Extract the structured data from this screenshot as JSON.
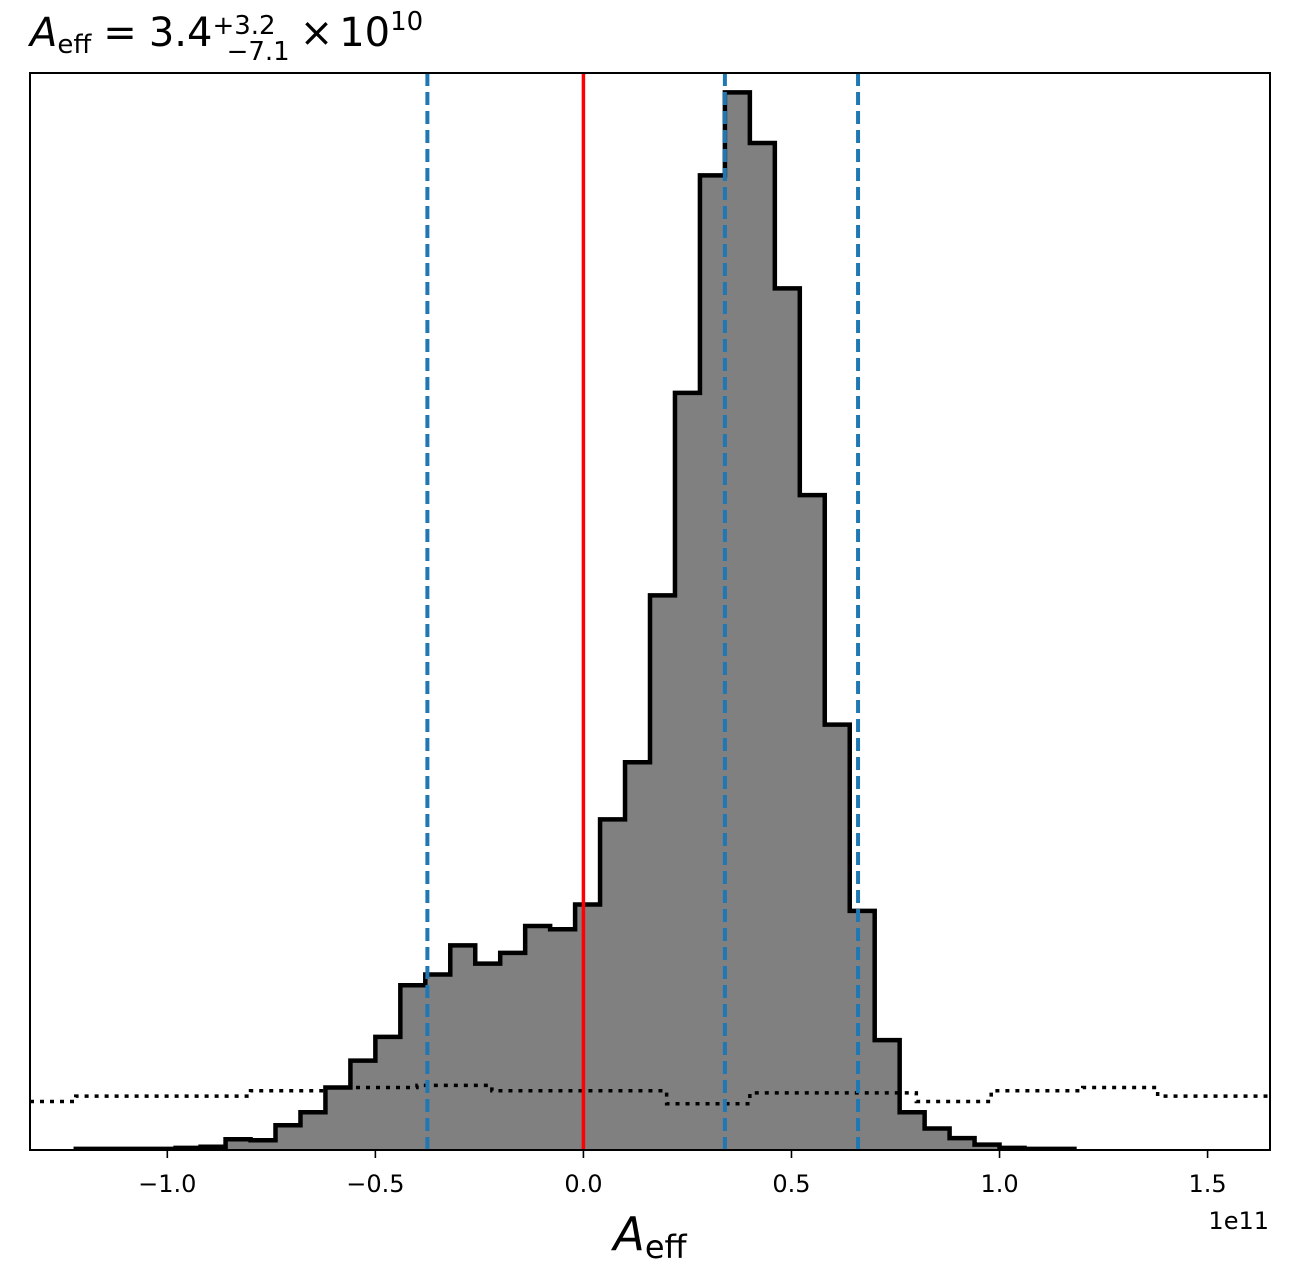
{
  "chart_data": {
    "type": "histogram",
    "title": {
      "symbol": "A",
      "subscript": "eff",
      "equals": "=",
      "value": "3.4",
      "plus": "+3.2",
      "minus": "−7.1",
      "times": "×",
      "base": "10",
      "exponent": "10"
    },
    "xlabel": {
      "symbol": "A",
      "subscript": "eff"
    },
    "offset_label": "1e11",
    "xlim": [
      -1.33,
      1.65
    ],
    "ylim": [
      0,
      1.0
    ],
    "x_ticks": [
      -1.0,
      -0.5,
      0.0,
      0.5,
      1.0,
      1.5
    ],
    "x_tick_labels": [
      "−1.0",
      "−0.5",
      "0.0",
      "0.5",
      "1.0",
      "1.5"
    ],
    "y_ticks_shown": false,
    "bin_edges": [
      -1.22,
      -1.16,
      -1.1,
      -1.04,
      -0.98,
      -0.92,
      -0.86,
      -0.8,
      -0.74,
      -0.68,
      -0.62,
      -0.56,
      -0.5,
      -0.44,
      -0.38,
      -0.32,
      -0.26,
      -0.2,
      -0.14,
      -0.08,
      -0.02,
      0.04,
      0.1,
      0.16,
      0.22,
      0.28,
      0.34,
      0.4,
      0.46,
      0.52,
      0.58,
      0.64,
      0.7,
      0.76,
      0.82,
      0.88,
      0.94,
      1.0,
      1.06,
      1.12,
      1.18
    ],
    "counts": [
      0.001,
      0.001,
      0.001,
      0.001,
      0.002,
      0.003,
      0.01,
      0.009,
      0.023,
      0.035,
      0.058,
      0.083,
      0.105,
      0.153,
      0.163,
      0.19,
      0.173,
      0.183,
      0.208,
      0.205,
      0.228,
      0.307,
      0.36,
      0.515,
      0.703,
      0.905,
      0.982,
      0.935,
      0.8,
      0.608,
      0.395,
      0.222,
      0.102,
      0.035,
      0.02,
      0.011,
      0.005,
      0.002,
      0.001,
      0.001
    ],
    "prior_curve": {
      "style": "dotted",
      "x": [
        -1.33,
        -1.22,
        -1.22,
        -0.8,
        -0.8,
        -0.62,
        -0.62,
        -0.4,
        -0.4,
        -0.22,
        -0.22,
        0.2,
        0.2,
        0.4,
        0.4,
        0.8,
        0.8,
        0.98,
        0.98,
        1.2,
        1.2,
        1.38,
        1.38,
        1.65
      ],
      "y": [
        0.045,
        0.045,
        0.05,
        0.05,
        0.055,
        0.055,
        0.058,
        0.058,
        0.06,
        0.06,
        0.055,
        0.055,
        0.043,
        0.043,
        0.053,
        0.053,
        0.045,
        0.045,
        0.055,
        0.055,
        0.058,
        0.058,
        0.05,
        0.05
      ]
    },
    "quantile_lines": [
      -0.375,
      0.34,
      0.66
    ],
    "truth_line": 0.0,
    "colors": {
      "hist_fill": "#808080",
      "hist_edge": "#000000",
      "quantile": "#1f77b4",
      "truth": "#ff0000"
    }
  }
}
